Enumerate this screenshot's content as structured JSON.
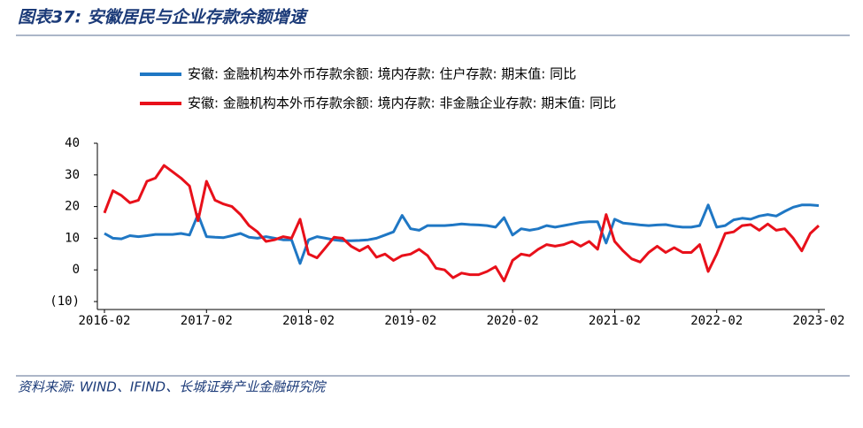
{
  "header": {
    "title": "图表37: 安徽居民与企业存款余额增速"
  },
  "chart_data": {
    "type": "line",
    "categories": [
      "2016-02",
      null,
      null,
      null,
      null,
      null,
      null,
      null,
      null,
      null,
      null,
      null,
      "2017-02",
      null,
      null,
      null,
      null,
      null,
      null,
      null,
      null,
      null,
      null,
      null,
      "2018-02",
      null,
      null,
      null,
      null,
      null,
      null,
      null,
      null,
      null,
      null,
      null,
      "2019-02",
      null,
      null,
      null,
      null,
      null,
      null,
      null,
      null,
      null,
      null,
      null,
      "2020-02",
      null,
      null,
      null,
      null,
      null,
      null,
      null,
      null,
      null,
      null,
      null,
      "2021-02",
      null,
      null,
      null,
      null,
      null,
      null,
      null,
      null,
      null,
      null,
      null,
      "2022-02",
      null,
      null,
      null,
      null,
      null,
      null,
      null,
      null,
      null,
      null,
      null,
      "2023-02"
    ],
    "series": [
      {
        "name": "安徽: 金融机构本外币存款余额: 境内存款: 住户存款: 期末值: 同比",
        "color": "#1f77c4",
        "values": [
          11.5,
          10,
          9.8,
          10.8,
          10.5,
          10.8,
          11.2,
          11.2,
          11.2,
          11.5,
          11,
          17.5,
          10.5,
          10.3,
          10.2,
          10.8,
          11.5,
          10.3,
          10,
          10.5,
          10,
          9.5,
          9.5,
          2,
          9.5,
          10.5,
          10,
          9.5,
          9.2,
          9.2,
          9.3,
          9.5,
          10,
          11,
          12,
          17.2,
          13,
          12.5,
          14,
          14,
          14,
          14.2,
          14.5,
          14.3,
          14.2,
          14,
          13.5,
          16.5,
          11,
          13,
          12.5,
          13,
          14,
          13.5,
          14,
          14.5,
          15,
          15.2,
          15.2,
          8.5,
          16,
          14.8,
          14.5,
          14.2,
          14,
          14.2,
          14.3,
          13.8,
          13.5,
          13.5,
          14,
          20.5,
          13.5,
          14,
          15.8,
          16.3,
          16,
          17,
          17.5,
          17,
          18.5,
          19.8,
          20.5,
          20.5,
          20.3
        ]
      },
      {
        "name": "安徽: 金融机构本外币存款余额: 境内存款: 非金融企业存款: 期末值: 同比",
        "color": "#e8101a",
        "values": [
          18,
          25,
          23.5,
          21.2,
          22,
          28,
          29,
          33,
          31,
          29,
          26.5,
          15.5,
          28,
          22,
          20.8,
          20,
          17.5,
          14,
          12,
          9,
          9.5,
          10.5,
          10,
          16,
          5,
          3.8,
          7,
          10.3,
          10,
          7.5,
          6,
          7.5,
          4,
          5,
          3,
          4.5,
          5,
          6.5,
          4.5,
          0.5,
          0,
          -2.5,
          -1,
          -1.5,
          -1.5,
          -0.5,
          1,
          -3.5,
          3,
          5,
          4.5,
          6.5,
          8,
          7.5,
          8,
          9,
          7.5,
          9,
          6.5,
          17.5,
          9,
          6,
          3.5,
          2.5,
          5.5,
          7.5,
          5.5,
          7,
          5.5,
          5.5,
          8,
          -0.5,
          5,
          11.5,
          12,
          14,
          14.3,
          12.5,
          14.5,
          12.5,
          13,
          10,
          6,
          11.5,
          14
        ]
      }
    ],
    "ylim": [
      -10,
      40
    ],
    "yticks": [
      {
        "value": -10,
        "label": "(10)"
      },
      0,
      10,
      20,
      30,
      40
    ]
  },
  "footer": {
    "source": "资料来源: WIND、IFIND、长城证券产业金融研究院"
  }
}
